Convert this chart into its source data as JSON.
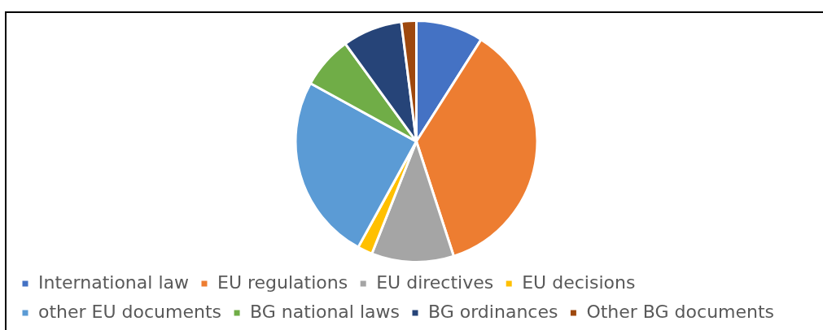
{
  "chart_data": {
    "type": "pie",
    "categories": [
      "International law",
      "EU regulations",
      "EU directives",
      "EU decisions",
      "other EU documents",
      "BG national laws",
      "BG ordinances",
      "Other BG documents"
    ],
    "values": [
      9,
      36,
      11,
      2,
      25,
      7,
      8,
      2
    ],
    "colors": [
      "#4472c4",
      "#ed7d31",
      "#a5a5a5",
      "#ffc000",
      "#5b9bd5",
      "#70ad47",
      "#264478",
      "#9e480e"
    ],
    "legend": "bottom"
  }
}
